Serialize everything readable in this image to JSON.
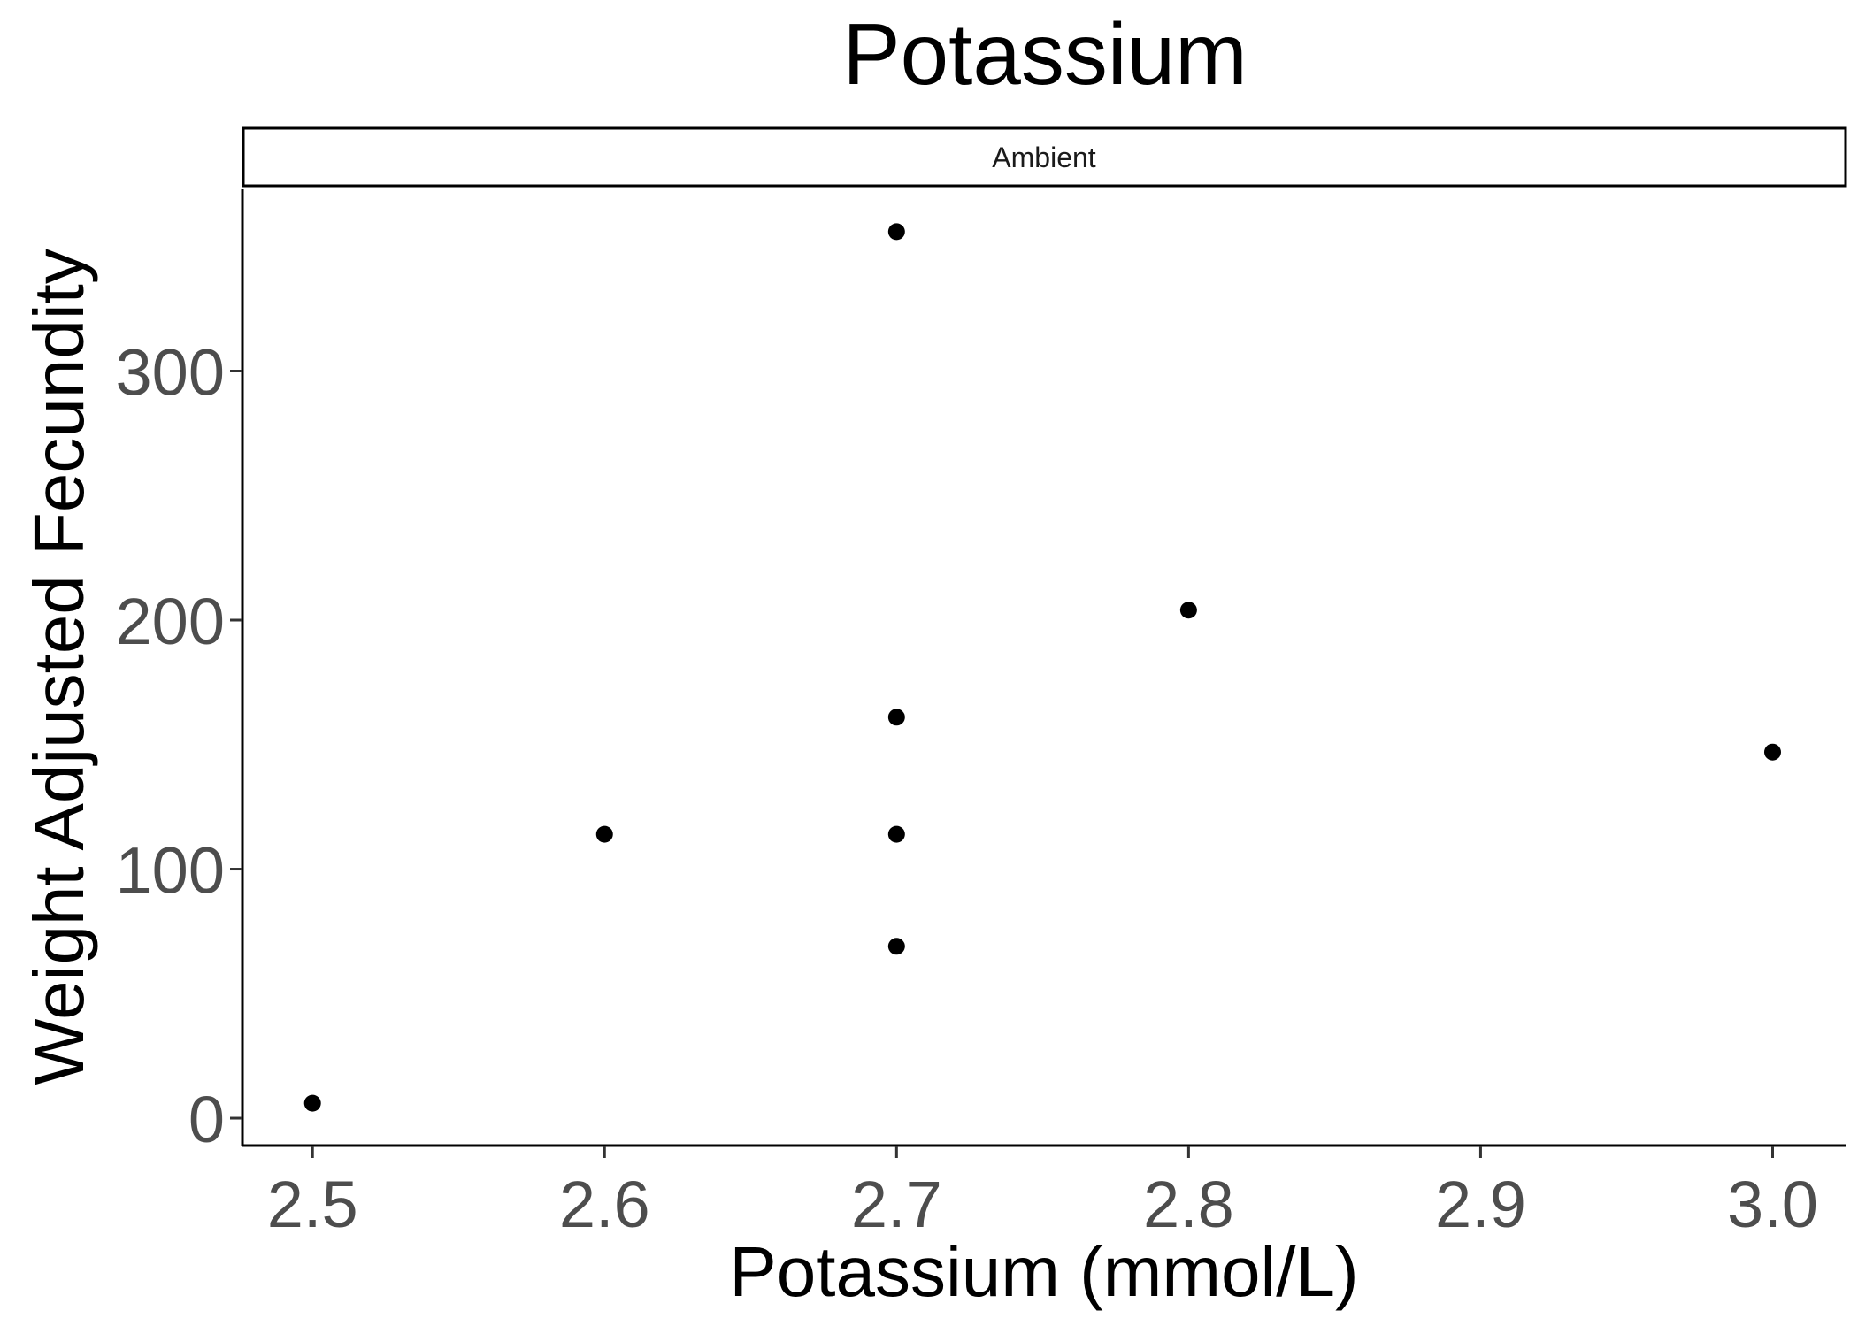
{
  "chart_data": {
    "type": "scatter",
    "title": "Potassium",
    "facet_label": "Ambient",
    "xlabel": "Potassium (mmol/L)",
    "ylabel": "Weight Adjusted Fecundity",
    "xlim": [
      2.476,
      3.025
    ],
    "ylim": [
      -11,
      373
    ],
    "xticks": [
      2.5,
      2.6,
      2.7,
      2.8,
      2.9,
      3.0
    ],
    "xtick_labels": [
      "2.5",
      "2.6",
      "2.7",
      "2.8",
      "2.9",
      "3.0"
    ],
    "yticks": [
      0,
      100,
      200,
      300
    ],
    "ytick_labels": [
      "0",
      "100",
      "200",
      "300"
    ],
    "grid": false,
    "legend": "none",
    "point_color": "#000000",
    "points": [
      {
        "x": 2.5,
        "y": 6
      },
      {
        "x": 2.6,
        "y": 114
      },
      {
        "x": 2.7,
        "y": 356
      },
      {
        "x": 2.7,
        "y": 161
      },
      {
        "x": 2.7,
        "y": 114
      },
      {
        "x": 2.7,
        "y": 69
      },
      {
        "x": 2.8,
        "y": 204
      },
      {
        "x": 3.0,
        "y": 147
      }
    ]
  }
}
